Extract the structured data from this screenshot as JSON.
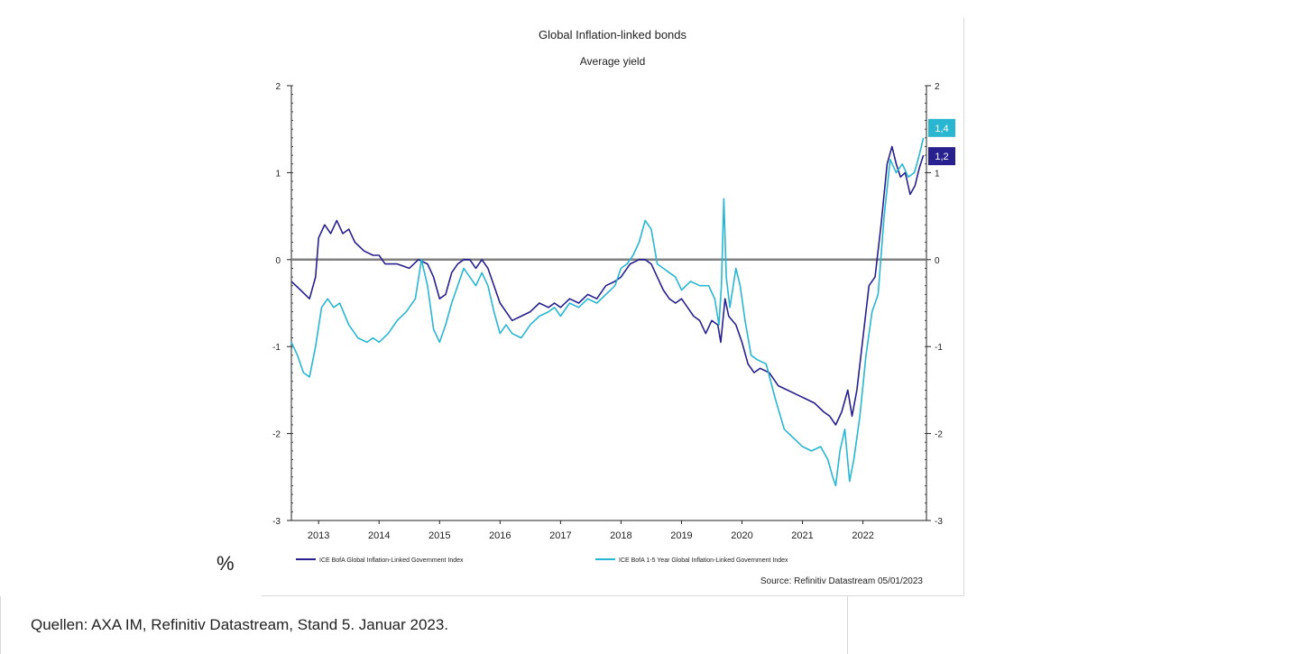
{
  "percent_label": "%",
  "footer_text": "Quellen: AXA IM, Refinitiv Datastream, Stand 5. Januar 2023.",
  "chart_data": {
    "type": "line",
    "title": "Global Inflation-linked bonds",
    "subtitle": "Average yield",
    "source": "Source: Refinitiv Datastream 05/01/2023",
    "ylim": [
      -3,
      2
    ],
    "xlim": [
      2012.55,
      2023.05
    ],
    "yticks": [
      -3,
      -2,
      -1,
      0,
      1,
      2
    ],
    "ytick_labels": [
      "-3",
      "-2",
      "-1",
      "0",
      "1",
      "2"
    ],
    "xticks": [
      "2013",
      "2014",
      "2015",
      "2016",
      "2017",
      "2018",
      "2019",
      "2020",
      "2021",
      "2022"
    ],
    "x_tick_positions": [
      2013,
      2014,
      2015,
      2016,
      2017,
      2018,
      2019,
      2020,
      2021,
      2022
    ],
    "zero_line": true,
    "grid": false,
    "legend_position": "bottom",
    "series": [
      {
        "name": "ICE BofA Global Inflation-Linked Government Index",
        "color": "#27208e",
        "end_label": "1,2",
        "end_value": 1.2,
        "points": [
          [
            2012.55,
            -0.25
          ],
          [
            2012.7,
            -0.35
          ],
          [
            2012.85,
            -0.45
          ],
          [
            2012.95,
            -0.2
          ],
          [
            2013.0,
            0.25
          ],
          [
            2013.1,
            0.4
          ],
          [
            2013.2,
            0.3
          ],
          [
            2013.3,
            0.45
          ],
          [
            2013.4,
            0.3
          ],
          [
            2013.5,
            0.35
          ],
          [
            2013.6,
            0.2
          ],
          [
            2013.75,
            0.1
          ],
          [
            2013.9,
            0.05
          ],
          [
            2014.0,
            0.05
          ],
          [
            2014.1,
            -0.05
          ],
          [
            2014.3,
            -0.05
          ],
          [
            2014.5,
            -0.1
          ],
          [
            2014.65,
            0.0
          ],
          [
            2014.8,
            -0.05
          ],
          [
            2014.9,
            -0.2
          ],
          [
            2015.0,
            -0.45
          ],
          [
            2015.1,
            -0.4
          ],
          [
            2015.2,
            -0.15
          ],
          [
            2015.3,
            -0.05
          ],
          [
            2015.4,
            0.0
          ],
          [
            2015.5,
            0.0
          ],
          [
            2015.6,
            -0.1
          ],
          [
            2015.7,
            0.0
          ],
          [
            2015.8,
            -0.1
          ],
          [
            2015.9,
            -0.3
          ],
          [
            2016.0,
            -0.5
          ],
          [
            2016.1,
            -0.6
          ],
          [
            2016.2,
            -0.7
          ],
          [
            2016.35,
            -0.65
          ],
          [
            2016.5,
            -0.6
          ],
          [
            2016.65,
            -0.5
          ],
          [
            2016.8,
            -0.55
          ],
          [
            2016.9,
            -0.5
          ],
          [
            2017.0,
            -0.55
          ],
          [
            2017.15,
            -0.45
          ],
          [
            2017.3,
            -0.5
          ],
          [
            2017.45,
            -0.4
          ],
          [
            2017.6,
            -0.45
          ],
          [
            2017.75,
            -0.3
          ],
          [
            2017.9,
            -0.25
          ],
          [
            2018.0,
            -0.2
          ],
          [
            2018.15,
            -0.05
          ],
          [
            2018.3,
            0.0
          ],
          [
            2018.4,
            0.0
          ],
          [
            2018.5,
            -0.05
          ],
          [
            2018.6,
            -0.2
          ],
          [
            2018.7,
            -0.35
          ],
          [
            2018.8,
            -0.45
          ],
          [
            2018.9,
            -0.5
          ],
          [
            2019.0,
            -0.45
          ],
          [
            2019.1,
            -0.55
          ],
          [
            2019.2,
            -0.65
          ],
          [
            2019.3,
            -0.7
          ],
          [
            2019.4,
            -0.85
          ],
          [
            2019.5,
            -0.7
          ],
          [
            2019.6,
            -0.75
          ],
          [
            2019.65,
            -0.95
          ],
          [
            2019.72,
            -0.45
          ],
          [
            2019.78,
            -0.65
          ],
          [
            2019.9,
            -0.75
          ],
          [
            2020.0,
            -0.95
          ],
          [
            2020.1,
            -1.2
          ],
          [
            2020.2,
            -1.3
          ],
          [
            2020.3,
            -1.25
          ],
          [
            2020.45,
            -1.3
          ],
          [
            2020.6,
            -1.45
          ],
          [
            2020.75,
            -1.5
          ],
          [
            2020.9,
            -1.55
          ],
          [
            2021.05,
            -1.6
          ],
          [
            2021.2,
            -1.65
          ],
          [
            2021.35,
            -1.75
          ],
          [
            2021.45,
            -1.8
          ],
          [
            2021.55,
            -1.9
          ],
          [
            2021.65,
            -1.75
          ],
          [
            2021.75,
            -1.5
          ],
          [
            2021.82,
            -1.8
          ],
          [
            2021.9,
            -1.5
          ],
          [
            2022.0,
            -0.9
          ],
          [
            2022.1,
            -0.3
          ],
          [
            2022.2,
            -0.2
          ],
          [
            2022.3,
            0.4
          ],
          [
            2022.4,
            1.1
          ],
          [
            2022.48,
            1.3
          ],
          [
            2022.55,
            1.1
          ],
          [
            2022.62,
            0.95
          ],
          [
            2022.7,
            1.0
          ],
          [
            2022.78,
            0.75
          ],
          [
            2022.86,
            0.85
          ],
          [
            2022.93,
            1.05
          ],
          [
            2023.0,
            1.2
          ]
        ]
      },
      {
        "name": "ICE BofA 1-5 Year Global Inflation-Linked Government Index",
        "color": "#29b6d0",
        "end_label": "1,4",
        "end_value": 1.4,
        "points": [
          [
            2012.55,
            -0.95
          ],
          [
            2012.65,
            -1.1
          ],
          [
            2012.75,
            -1.3
          ],
          [
            2012.85,
            -1.35
          ],
          [
            2012.95,
            -1.0
          ],
          [
            2013.05,
            -0.55
          ],
          [
            2013.15,
            -0.45
          ],
          [
            2013.25,
            -0.55
          ],
          [
            2013.35,
            -0.5
          ],
          [
            2013.5,
            -0.75
          ],
          [
            2013.65,
            -0.9
          ],
          [
            2013.8,
            -0.95
          ],
          [
            2013.9,
            -0.9
          ],
          [
            2014.0,
            -0.95
          ],
          [
            2014.15,
            -0.85
          ],
          [
            2014.3,
            -0.7
          ],
          [
            2014.45,
            -0.6
          ],
          [
            2014.6,
            -0.45
          ],
          [
            2014.7,
            0.0
          ],
          [
            2014.8,
            -0.3
          ],
          [
            2014.9,
            -0.8
          ],
          [
            2015.0,
            -0.95
          ],
          [
            2015.1,
            -0.75
          ],
          [
            2015.2,
            -0.5
          ],
          [
            2015.3,
            -0.3
          ],
          [
            2015.4,
            -0.1
          ],
          [
            2015.5,
            -0.2
          ],
          [
            2015.6,
            -0.3
          ],
          [
            2015.7,
            -0.15
          ],
          [
            2015.8,
            -0.3
          ],
          [
            2015.9,
            -0.6
          ],
          [
            2016.0,
            -0.85
          ],
          [
            2016.1,
            -0.75
          ],
          [
            2016.2,
            -0.85
          ],
          [
            2016.35,
            -0.9
          ],
          [
            2016.5,
            -0.75
          ],
          [
            2016.65,
            -0.65
          ],
          [
            2016.8,
            -0.6
          ],
          [
            2016.9,
            -0.55
          ],
          [
            2017.0,
            -0.65
          ],
          [
            2017.15,
            -0.5
          ],
          [
            2017.3,
            -0.55
          ],
          [
            2017.45,
            -0.45
          ],
          [
            2017.6,
            -0.5
          ],
          [
            2017.75,
            -0.4
          ],
          [
            2017.9,
            -0.3
          ],
          [
            2018.0,
            -0.1
          ],
          [
            2018.1,
            -0.05
          ],
          [
            2018.2,
            0.05
          ],
          [
            2018.3,
            0.2
          ],
          [
            2018.4,
            0.45
          ],
          [
            2018.5,
            0.35
          ],
          [
            2018.6,
            -0.05
          ],
          [
            2018.7,
            -0.1
          ],
          [
            2018.8,
            -0.15
          ],
          [
            2018.9,
            -0.2
          ],
          [
            2019.0,
            -0.35
          ],
          [
            2019.15,
            -0.25
          ],
          [
            2019.3,
            -0.3
          ],
          [
            2019.45,
            -0.3
          ],
          [
            2019.55,
            -0.45
          ],
          [
            2019.62,
            -0.75
          ],
          [
            2019.66,
            -0.3
          ],
          [
            2019.7,
            0.7
          ],
          [
            2019.74,
            -0.2
          ],
          [
            2019.8,
            -0.55
          ],
          [
            2019.9,
            -0.1
          ],
          [
            2019.97,
            -0.3
          ],
          [
            2020.05,
            -0.7
          ],
          [
            2020.15,
            -1.1
          ],
          [
            2020.25,
            -1.15
          ],
          [
            2020.4,
            -1.2
          ],
          [
            2020.55,
            -1.6
          ],
          [
            2020.7,
            -1.95
          ],
          [
            2020.85,
            -2.05
          ],
          [
            2021.0,
            -2.15
          ],
          [
            2021.15,
            -2.2
          ],
          [
            2021.3,
            -2.15
          ],
          [
            2021.42,
            -2.3
          ],
          [
            2021.5,
            -2.5
          ],
          [
            2021.55,
            -2.6
          ],
          [
            2021.62,
            -2.2
          ],
          [
            2021.7,
            -1.95
          ],
          [
            2021.78,
            -2.55
          ],
          [
            2021.85,
            -2.3
          ],
          [
            2021.95,
            -1.8
          ],
          [
            2022.05,
            -1.1
          ],
          [
            2022.15,
            -0.6
          ],
          [
            2022.25,
            -0.4
          ],
          [
            2022.35,
            0.5
          ],
          [
            2022.45,
            1.15
          ],
          [
            2022.55,
            1.0
          ],
          [
            2022.65,
            1.1
          ],
          [
            2022.75,
            0.95
          ],
          [
            2022.85,
            1.0
          ],
          [
            2022.93,
            1.2
          ],
          [
            2023.0,
            1.4
          ]
        ]
      }
    ]
  }
}
